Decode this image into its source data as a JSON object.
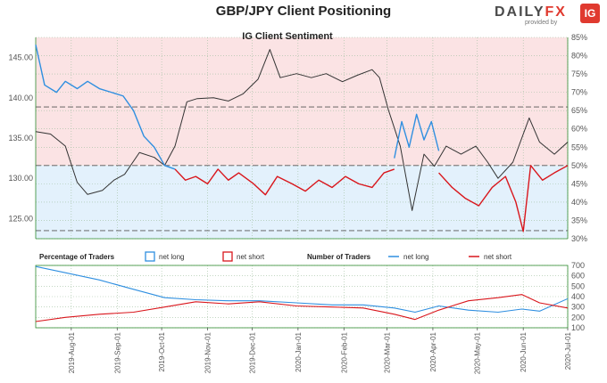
{
  "header": {
    "title": "GBP/JPY Client Positioning",
    "logo_word_main": "DAILY",
    "logo_word_accent": "FX",
    "logo_sub": "provided by",
    "logo_badge": "IG",
    "logo_icon": "ig-logo-icon"
  },
  "colors": {
    "net_long": "#2f8fe0",
    "net_short": "#d9161c",
    "price": "#333333",
    "long_zone": "#e3f1fc",
    "short_zone": "#fbe3e4",
    "grid": "#9fbf9f",
    "bg": "#ffffff"
  },
  "chart_data": [
    {
      "type": "line",
      "title": "IG Client Sentiment",
      "x_range": [
        "2019-07-08",
        "2020-07-01"
      ],
      "x_ticks": [
        "2019-Aug-01",
        "2019-Sep-01",
        "2019-Oct-01",
        "2019-Nov-01",
        "2019-Dec-01",
        "2020-Jan-01",
        "2020-Feb-01",
        "2020-Mar-01",
        "2020-Apr-01",
        "2020-May-01",
        "2020-Jun-01",
        "2020-Jul-01"
      ],
      "y_left_range": [
        122.5,
        147.5
      ],
      "y_left_ticks": [
        "125.00",
        "130.00",
        "135.00",
        "140.00",
        "145.00"
      ],
      "y_right_range": [
        30,
        85
      ],
      "y_right_ticks": [
        "30%",
        "35%",
        "40%",
        "45%",
        "50%",
        "55%",
        "60%",
        "65%",
        "70%",
        "75%",
        "80%",
        "85%"
      ],
      "grid": true,
      "shaded_zones": [
        {
          "from": 50,
          "to": 85,
          "meaning": "net short side"
        },
        {
          "from": 30,
          "to": 50,
          "meaning": "net long side"
        }
      ],
      "reference_lines": [
        50,
        66
      ],
      "series": [
        {
          "name": "",
          "role": "price (candlestick close)",
          "axis": "left",
          "points": [
            [
              "2019-07-08",
              135.8
            ],
            [
              "2019-07-18",
              135.5
            ],
            [
              "2019-07-28",
              134.0
            ],
            [
              "2019-08-05",
              129.5
            ],
            [
              "2019-08-12",
              128.0
            ],
            [
              "2019-08-22",
              128.5
            ],
            [
              "2019-08-30",
              129.8
            ],
            [
              "2019-09-06",
              130.5
            ],
            [
              "2019-09-16",
              133.2
            ],
            [
              "2019-09-26",
              132.6
            ],
            [
              "2019-10-03",
              131.6
            ],
            [
              "2019-10-10",
              134.0
            ],
            [
              "2019-10-18",
              139.5
            ],
            [
              "2019-10-25",
              139.9
            ],
            [
              "2019-11-05",
              140.0
            ],
            [
              "2019-11-15",
              139.6
            ],
            [
              "2019-11-25",
              140.5
            ],
            [
              "2019-12-05",
              142.3
            ],
            [
              "2019-12-13",
              146.0
            ],
            [
              "2019-12-20",
              142.5
            ],
            [
              "2019-12-31",
              143.0
            ],
            [
              "2020-01-10",
              142.5
            ],
            [
              "2020-01-20",
              143.0
            ],
            [
              "2020-01-31",
              142.0
            ],
            [
              "2020-02-10",
              142.8
            ],
            [
              "2020-02-20",
              143.5
            ],
            [
              "2020-02-25",
              142.5
            ],
            [
              "2020-03-02",
              138.5
            ],
            [
              "2020-03-10",
              134.0
            ],
            [
              "2020-03-18",
              126.0
            ],
            [
              "2020-03-26",
              133.0
            ],
            [
              "2020-04-02",
              131.5
            ],
            [
              "2020-04-10",
              134.0
            ],
            [
              "2020-04-20",
              133.0
            ],
            [
              "2020-04-30",
              134.0
            ],
            [
              "2020-05-08",
              132.0
            ],
            [
              "2020-05-15",
              130.0
            ],
            [
              "2020-05-25",
              132.0
            ],
            [
              "2020-06-05",
              137.5
            ],
            [
              "2020-06-12",
              134.5
            ],
            [
              "2020-06-22",
              133.0
            ],
            [
              "2020-07-01",
              134.5
            ]
          ]
        },
        {
          "name": "net long",
          "axis": "right",
          "points": [
            [
              "2019-07-08",
              83
            ],
            [
              "2019-07-14",
              72
            ],
            [
              "2019-07-22",
              70
            ],
            [
              "2019-07-28",
              73
            ],
            [
              "2019-08-05",
              71
            ],
            [
              "2019-08-12",
              73
            ],
            [
              "2019-08-20",
              71
            ],
            [
              "2019-08-28",
              70
            ],
            [
              "2019-09-05",
              69
            ],
            [
              "2019-09-12",
              65
            ],
            [
              "2019-09-19",
              58
            ],
            [
              "2019-09-26",
              55
            ],
            [
              "2019-10-03",
              50
            ],
            [
              "2019-10-10",
              49
            ]
          ]
        },
        {
          "name": "net short",
          "axis": "right",
          "points": [
            [
              "2019-10-10",
              49
            ],
            [
              "2019-10-17",
              46
            ],
            [
              "2019-10-24",
              47
            ],
            [
              "2019-11-01",
              45
            ],
            [
              "2019-11-08",
              49
            ],
            [
              "2019-11-15",
              46
            ],
            [
              "2019-11-22",
              48
            ],
            [
              "2019-12-02",
              45
            ],
            [
              "2019-12-10",
              42
            ],
            [
              "2019-12-18",
              47
            ],
            [
              "2019-12-28",
              45
            ],
            [
              "2020-01-06",
              43
            ],
            [
              "2020-01-15",
              46
            ],
            [
              "2020-01-24",
              44
            ],
            [
              "2020-02-02",
              47
            ],
            [
              "2020-02-11",
              45
            ],
            [
              "2020-02-20",
              44
            ],
            [
              "2020-02-28",
              48
            ],
            [
              "2020-03-06",
              49
            ]
          ]
        },
        {
          "name": "net long",
          "axis": "right",
          "points": [
            [
              "2020-03-06",
              52
            ],
            [
              "2020-03-11",
              62
            ],
            [
              "2020-03-16",
              55
            ],
            [
              "2020-03-21",
              64
            ],
            [
              "2020-03-26",
              57
            ],
            [
              "2020-03-31",
              62
            ],
            [
              "2020-04-05",
              54
            ]
          ]
        },
        {
          "name": "net short",
          "axis": "right",
          "points": [
            [
              "2020-04-05",
              48
            ],
            [
              "2020-04-14",
              44
            ],
            [
              "2020-04-23",
              41
            ],
            [
              "2020-05-02",
              39
            ],
            [
              "2020-05-11",
              44
            ],
            [
              "2020-05-20",
              47
            ],
            [
              "2020-05-27",
              40
            ],
            [
              "2020-06-01",
              32
            ],
            [
              "2020-06-06",
              50
            ],
            [
              "2020-06-14",
              46
            ],
            [
              "2020-06-22",
              48
            ],
            [
              "2020-07-01",
              50
            ]
          ]
        }
      ]
    },
    {
      "type": "line",
      "title": "",
      "legend": {
        "percentage_label": "Percentage of Traders",
        "number_label": "Number of Traders",
        "entries": [
          "net long",
          "net short"
        ],
        "placement": "top"
      },
      "x_range": [
        "2019-07-08",
        "2020-07-01"
      ],
      "y_range": [
        100,
        700
      ],
      "y_ticks": [
        "100",
        "200",
        "300",
        "400",
        "500",
        "600",
        "700"
      ],
      "grid": true,
      "series": [
        {
          "name": "net long",
          "points": [
            [
              "2019-07-08",
              690
            ],
            [
              "2019-07-28",
              630
            ],
            [
              "2019-08-20",
              560
            ],
            [
              "2019-09-12",
              470
            ],
            [
              "2019-10-03",
              390
            ],
            [
              "2019-10-24",
              370
            ],
            [
              "2019-11-15",
              360
            ],
            [
              "2019-12-06",
              360
            ],
            [
              "2019-12-31",
              340
            ],
            [
              "2020-01-24",
              320
            ],
            [
              "2020-02-14",
              320
            ],
            [
              "2020-03-06",
              290
            ],
            [
              "2020-03-20",
              250
            ],
            [
              "2020-04-05",
              310
            ],
            [
              "2020-04-25",
              270
            ],
            [
              "2020-05-15",
              250
            ],
            [
              "2020-05-31",
              280
            ],
            [
              "2020-06-12",
              260
            ],
            [
              "2020-07-01",
              380
            ]
          ]
        },
        {
          "name": "net short",
          "points": [
            [
              "2019-07-08",
              160
            ],
            [
              "2019-07-28",
              200
            ],
            [
              "2019-08-20",
              230
            ],
            [
              "2019-09-12",
              250
            ],
            [
              "2019-10-03",
              300
            ],
            [
              "2019-10-24",
              350
            ],
            [
              "2019-11-15",
              330
            ],
            [
              "2019-12-06",
              350
            ],
            [
              "2019-12-31",
              310
            ],
            [
              "2020-01-24",
              300
            ],
            [
              "2020-02-14",
              290
            ],
            [
              "2020-03-06",
              230
            ],
            [
              "2020-03-20",
              180
            ],
            [
              "2020-04-05",
              270
            ],
            [
              "2020-04-25",
              360
            ],
            [
              "2020-05-15",
              390
            ],
            [
              "2020-05-31",
              420
            ],
            [
              "2020-06-12",
              340
            ],
            [
              "2020-07-01",
              290
            ]
          ]
        }
      ]
    }
  ]
}
